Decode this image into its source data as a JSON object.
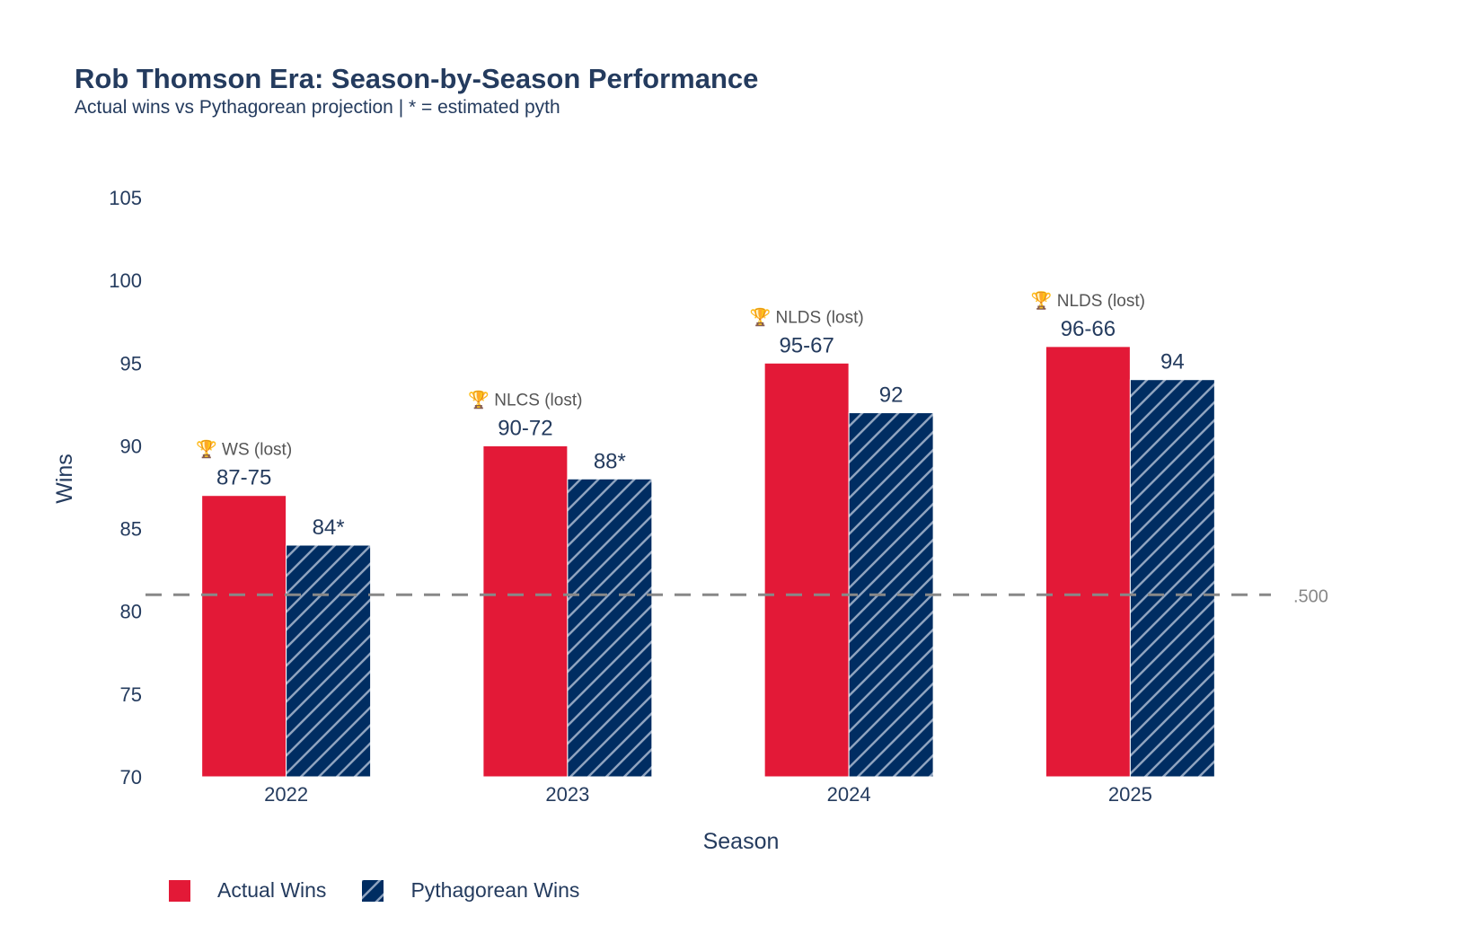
{
  "colors": {
    "actual": "#e31937",
    "pythagorean": "#002d62",
    "hatch": "#8fa3bf",
    "text": "#243b5e",
    "annotation": "#555555",
    "reference_line": "#888888"
  },
  "chart_data": {
    "type": "bar",
    "title": "Rob Thomson Era: Season-by-Season Performance",
    "subtitle": "Actual wins vs Pythagorean projection | * = estimated pyth",
    "xlabel": "Season",
    "ylabel": "Wins",
    "ylim": [
      70,
      105
    ],
    "yticks": [
      70,
      75,
      80,
      85,
      90,
      95,
      100,
      105
    ],
    "categories": [
      "2022",
      "2023",
      "2024",
      "2025"
    ],
    "series": [
      {
        "name": "Actual Wins",
        "values": [
          87,
          90,
          95,
          96
        ],
        "labels": [
          "87-75",
          "90-72",
          "95-67",
          "96-66"
        ]
      },
      {
        "name": "Pythagorean Wins",
        "values": [
          84,
          88,
          92,
          94
        ],
        "labels": [
          "84*",
          "88*",
          "92",
          "94"
        ]
      }
    ],
    "postseason": [
      "🏆 WS (lost)",
      "🏆 NLCS (lost)",
      "🏆 NLDS (lost)",
      "🏆 NLDS (lost)"
    ],
    "reference_line": {
      "value": 81,
      "label": ".500",
      "style": "dashed"
    },
    "grid": false,
    "legend_position": "bottom-left"
  }
}
